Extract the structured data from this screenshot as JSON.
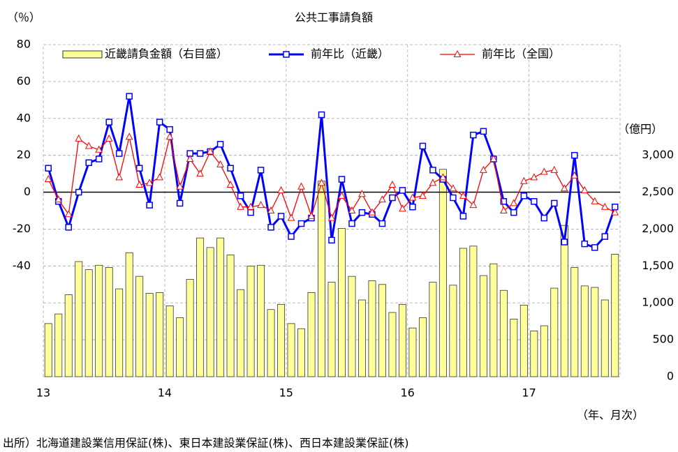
{
  "chart_data": {
    "type": "combo",
    "title": "公共工事請負額",
    "y_label": "（％）",
    "y2_label": "（億円）",
    "x_label": "（年、月次）",
    "source": "出所）北海道建設業信用保証(株)、東日本建設業保証(株)、西日本建設業保証(株)",
    "categories": [
      "13",
      null,
      null,
      null,
      null,
      null,
      null,
      null,
      null,
      null,
      null,
      null,
      "14",
      null,
      null,
      null,
      null,
      null,
      null,
      null,
      null,
      null,
      null,
      null,
      "15",
      null,
      null,
      null,
      null,
      null,
      null,
      null,
      null,
      null,
      null,
      null,
      "16",
      null,
      null,
      null,
      null,
      null,
      null,
      null,
      null,
      null,
      null,
      null,
      "17",
      null,
      null,
      null,
      null,
      null,
      null,
      null,
      null
    ],
    "ylim": [
      -100,
      80
    ],
    "yticks": [
      80,
      60,
      40,
      20,
      0,
      -20,
      -40
    ],
    "y2lim": [
      0,
      4500
    ],
    "y2ticks": [
      0,
      500,
      {
        "value": 1000,
        "label": "1,000"
      },
      {
        "value": 1500,
        "label": "1,500"
      },
      {
        "value": 2000,
        "label": "2,000"
      },
      {
        "value": 2500,
        "label": "2,500"
      },
      {
        "value": 3000,
        "label": "3,000"
      }
    ],
    "grid": true,
    "series": [
      {
        "name": "近畿請負金額（右目盛）",
        "type": "bar",
        "axis": "y2",
        "color": "#ffff99",
        "values": [
          720,
          850,
          1110,
          1560,
          1450,
          1510,
          1480,
          1190,
          1680,
          1360,
          1130,
          1140,
          960,
          800,
          1320,
          1880,
          1750,
          1880,
          1650,
          1180,
          1500,
          1510,
          910,
          980,
          720,
          650,
          1140,
          2650,
          1280,
          2010,
          1360,
          1040,
          1300,
          1250,
          870,
          980,
          660,
          800,
          1280,
          2810,
          1240,
          1740,
          1770,
          1370,
          1530,
          1170,
          780,
          970,
          620,
          690,
          1200,
          2050,
          1480,
          1230,
          1210,
          1040,
          1660
        ]
      },
      {
        "name": "前年比（近畿）",
        "type": "line",
        "color": "#0000ff",
        "values": [
          13,
          -5,
          -19,
          0,
          16,
          18,
          38,
          21,
          52,
          13,
          -7,
          38,
          34,
          -6,
          21,
          21,
          22,
          26,
          13,
          -2,
          -11,
          12,
          -19,
          -13,
          -24,
          -17,
          -14,
          42,
          -26,
          7,
          -17,
          -11,
          -12,
          -17,
          -3,
          1,
          -8,
          25,
          12,
          7,
          -3,
          -13,
          31,
          33,
          18,
          -5,
          -11,
          -2,
          -5,
          -14,
          -6,
          -27,
          20,
          -28,
          -30,
          -24,
          -8
        ]
      },
      {
        "name": "前年比（全国）",
        "type": "line",
        "color": "#ff0000",
        "values": [
          7,
          -4,
          -12,
          29,
          25,
          23,
          29,
          8,
          30,
          4,
          5,
          8,
          30,
          3,
          18,
          10,
          22,
          15,
          4,
          -8,
          -8,
          -7,
          -10,
          1,
          -14,
          3,
          -13,
          5,
          -14,
          -2,
          -10,
          -1,
          -11,
          -4,
          4,
          -9,
          -3,
          -2,
          5,
          8,
          2,
          -2,
          -7,
          12,
          18,
          -10,
          -6,
          6,
          8,
          11,
          12,
          2,
          9,
          1,
          -5,
          -8,
          -11
        ]
      }
    ]
  }
}
